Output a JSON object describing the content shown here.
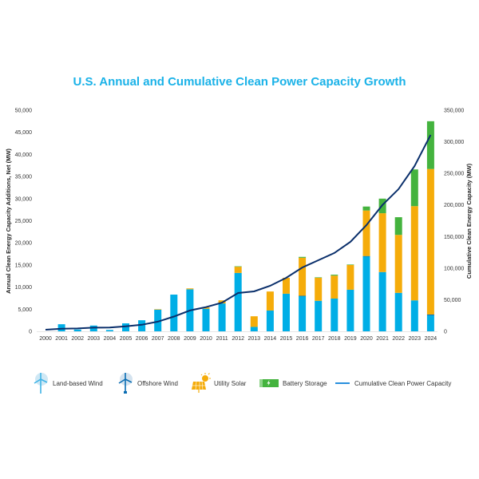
{
  "chart_data": {
    "type": "bar",
    "stacked": true,
    "title": "U.S. Annual and Cumulative Clean Power Capacity Growth",
    "xlabel": "",
    "ylabel": "Annual Clean Energy Capacity Additions, Net (MW)",
    "y2label": "Cumulative Clean Energy Capacity (MW)",
    "ylim": [
      0,
      50000
    ],
    "y2lim": [
      0,
      350000
    ],
    "yticks": [
      "0",
      "5,000",
      "10,000",
      "15,000",
      "20,000",
      "25,000",
      "30,000",
      "35,000",
      "40,000",
      "45,000",
      "50,000"
    ],
    "y2ticks": [
      "0",
      "50,000",
      "100,000",
      "150,000",
      "200,000",
      "250,000",
      "300,000",
      "350,000"
    ],
    "grid": false,
    "legend_position": "bottom",
    "categories": [
      "2000",
      "2001",
      "2002",
      "2003",
      "2004",
      "2005",
      "2006",
      "2007",
      "2008",
      "2009",
      "2010",
      "2011",
      "2012",
      "2013",
      "2014",
      "2015",
      "2016",
      "2017",
      "2018",
      "2019",
      "2020",
      "2021",
      "2022",
      "2023",
      "2024"
    ],
    "series": [
      {
        "name": "Land-based Wind",
        "color": "#00aee6",
        "axis": "left",
        "kind": "bar",
        "values": [
          0,
          1600,
          400,
          1300,
          300,
          1800,
          2500,
          4900,
          8300,
          9500,
          5100,
          6300,
          13200,
          1000,
          4700,
          8500,
          8000,
          6900,
          7400,
          9400,
          17000,
          13400,
          8700,
          7000,
          3600
        ]
      },
      {
        "name": "Offshore Wind",
        "color": "#0a6db3",
        "axis": "left",
        "kind": "bar",
        "values": [
          0,
          0,
          0,
          0,
          0,
          0,
          0,
          0,
          0,
          0,
          0,
          0,
          0,
          0,
          0,
          0,
          30,
          0,
          0,
          0,
          12,
          0,
          0,
          0,
          200
        ]
      },
      {
        "name": "Utility Solar",
        "color": "#f5ac0a",
        "axis": "left",
        "kind": "bar",
        "values": [
          0,
          0,
          0,
          0,
          0,
          0,
          0,
          100,
          0,
          200,
          300,
          700,
          1400,
          2400,
          4300,
          3600,
          8600,
          5200,
          5200,
          5600,
          10300,
          13300,
          13100,
          21300,
          32900
        ]
      },
      {
        "name": "Battery Storage",
        "color": "#44b33e",
        "axis": "left",
        "kind": "bar",
        "values": [
          0,
          0,
          0,
          0,
          0,
          0,
          0,
          0,
          0,
          0,
          0,
          0,
          100,
          0,
          0,
          0,
          200,
          100,
          200,
          100,
          900,
          3300,
          4000,
          8300,
          10800
        ]
      },
      {
        "name": "Cumulative Clean Power Capacity",
        "color": "#0a2f6b",
        "axis": "right",
        "kind": "line",
        "values": [
          2500,
          4000,
          4500,
          5800,
          6000,
          7800,
          10300,
          15300,
          23400,
          33000,
          38300,
          45300,
          60600,
          63200,
          72000,
          84600,
          101000,
          112500,
          124000,
          141500,
          168000,
          200000,
          225000,
          261500,
          310800
        ]
      }
    ]
  },
  "legend": {
    "items": [
      {
        "label": "Land-based Wind",
        "icon": "land-wind-turbine-icon"
      },
      {
        "label": "Offshore Wind",
        "icon": "offshore-wind-turbine-icon"
      },
      {
        "label": "Utility Solar",
        "icon": "solar-panel-icon"
      },
      {
        "label": "Battery Storage",
        "icon": "battery-icon"
      },
      {
        "label": "Cumulative Clean Power Capacity",
        "icon": "line-swatch-icon"
      }
    ]
  }
}
